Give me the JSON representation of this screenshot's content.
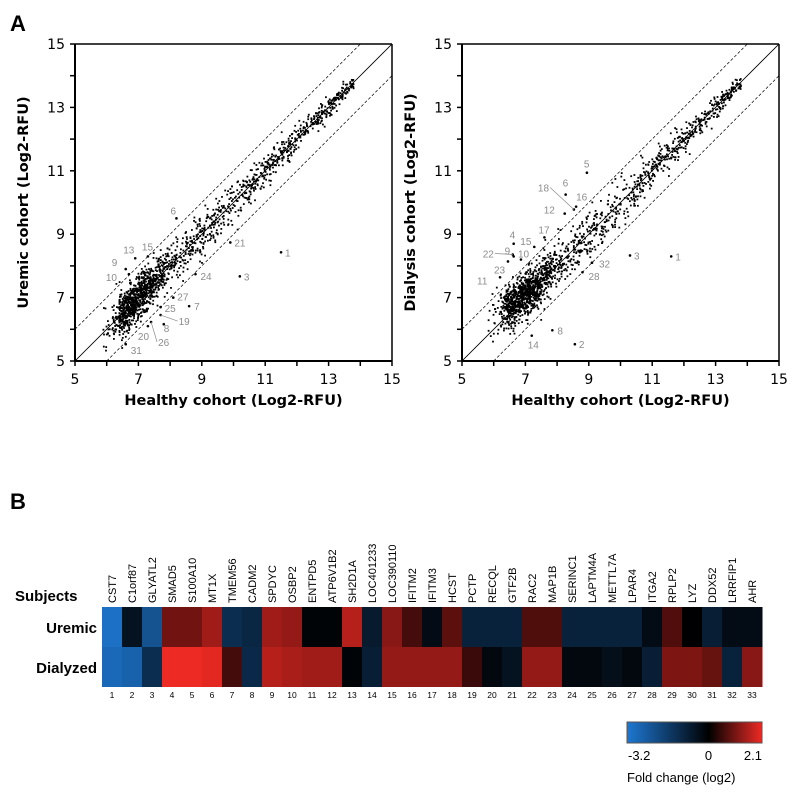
{
  "panels": {
    "a": "A",
    "b": "B"
  },
  "chart_data": [
    {
      "type": "scatter",
      "xlabel": "Healthy cohort (Log2-RFU)",
      "ylabel": "Uremic cohort (Log2-RFU)",
      "xlim": [
        5,
        15
      ],
      "ylim": [
        5,
        15
      ],
      "xticks": [
        "5",
        "7",
        "9",
        "11",
        "13",
        "15"
      ],
      "yticks": [
        "5",
        "7",
        "9",
        "11",
        "13",
        "15"
      ],
      "reference_lines": {
        "identity": "y = x",
        "bounds": "y = x ± 1"
      },
      "cloud": {
        "n": 1600,
        "x_range": [
          6.4,
          13.8
        ],
        "spread": 0.32
      },
      "outliers": [
        {
          "label": "1",
          "x": 11.5,
          "y": 8.43
        },
        {
          "label": "3",
          "x": 10.2,
          "y": 7.67
        },
        {
          "label": "6",
          "x": 8.2,
          "y": 9.5
        },
        {
          "label": "7",
          "x": 8.6,
          "y": 6.73
        },
        {
          "label": "8",
          "x": 7.8,
          "y": 6.16
        },
        {
          "label": "9",
          "x": 6.6,
          "y": 7.9
        },
        {
          "label": "10",
          "x": 6.7,
          "y": 7.74
        },
        {
          "label": "13",
          "x": 6.9,
          "y": 8.24
        },
        {
          "label": "15",
          "x": 7.3,
          "y": 8.3
        },
        {
          "label": "19",
          "x": 7.7,
          "y": 6.45
        },
        {
          "label": "20",
          "x": 7.3,
          "y": 6.1
        },
        {
          "label": "21",
          "x": 9.9,
          "y": 8.74
        },
        {
          "label": "24",
          "x": 8.8,
          "y": 7.74
        },
        {
          "label": "25",
          "x": 7.7,
          "y": 6.7
        },
        {
          "label": "26",
          "x": 7.4,
          "y": 6.23
        },
        {
          "label": "27",
          "x": 8.1,
          "y": 7.0
        },
        {
          "label": "31",
          "x": 6.6,
          "y": 5.53
        }
      ]
    },
    {
      "type": "scatter",
      "xlabel": "Healthy cohort (Log2-RFU)",
      "ylabel": "Dialysis cohort (Log2-RFU)",
      "xlim": [
        5,
        15
      ],
      "ylim": [
        5,
        15
      ],
      "xticks": [
        "5",
        "7",
        "9",
        "11",
        "13",
        "15"
      ],
      "yticks": [
        "5",
        "7",
        "9",
        "11",
        "13",
        "15"
      ],
      "reference_lines": {
        "identity": "y = x",
        "bounds": "y = x ± 1"
      },
      "cloud": {
        "n": 1600,
        "x_range": [
          6.4,
          13.8
        ],
        "spread": 0.36
      },
      "outliers": [
        {
          "label": "1",
          "x": 11.6,
          "y": 8.3
        },
        {
          "label": "2",
          "x": 8.56,
          "y": 5.53
        },
        {
          "label": "3",
          "x": 10.3,
          "y": 8.33
        },
        {
          "label": "4",
          "x": 6.63,
          "y": 8.7
        },
        {
          "label": "5",
          "x": 8.94,
          "y": 10.94
        },
        {
          "label": "6",
          "x": 8.27,
          "y": 10.25
        },
        {
          "label": "8",
          "x": 7.85,
          "y": 5.97
        },
        {
          "label": "9",
          "x": 6.63,
          "y": 8.3
        },
        {
          "label": "10",
          "x": 6.86,
          "y": 8.2
        },
        {
          "label": "11",
          "x": 6.2,
          "y": 7.64
        },
        {
          "label": "12",
          "x": 8.24,
          "y": 9.65
        },
        {
          "label": "14",
          "x": 7.2,
          "y": 5.8
        },
        {
          "label": "15",
          "x": 7.28,
          "y": 8.6
        },
        {
          "label": "16",
          "x": 8.6,
          "y": 9.87
        },
        {
          "label": "17",
          "x": 7.6,
          "y": 8.9
        },
        {
          "label": "18",
          "x": 8.53,
          "y": 9.78
        },
        {
          "label": "22",
          "x": 6.6,
          "y": 8.36
        },
        {
          "label": "23",
          "x": 6.45,
          "y": 8.14
        },
        {
          "label": "28",
          "x": 8.8,
          "y": 7.8
        },
        {
          "label": "32",
          "x": 9.1,
          "y": 8.1
        }
      ]
    },
    {
      "type": "heatmap",
      "corner_label": "Subjects",
      "rows": [
        "Uremic",
        "Dialyzed"
      ],
      "columns": [
        "CST7",
        "C1orf87",
        "GLYATL2",
        "SMAD5",
        "S100A10",
        "MT1X",
        "TMEM56",
        "CADM2",
        "SPDYC",
        "OSBP2",
        "ENTPD5",
        "ATP6V1B2",
        "SH2D1A",
        "LOC401233",
        "LOC390110",
        "IFITM2",
        "IFITM3",
        "HCST",
        "PCTP",
        "RECQL",
        "GTF2B",
        "RAC2",
        "MAP1B",
        "SERINC1",
        "LAPTM4A",
        "METTL7A",
        "LPAR4",
        "ITGA2",
        "RPLP2",
        "LYZ",
        "DDX52",
        "LRRFIP1",
        "AHR"
      ],
      "column_numbers": [
        "1",
        "2",
        "3",
        "4",
        "5",
        "6",
        "7",
        "8",
        "9",
        "10",
        "11",
        "12",
        "13",
        "14",
        "15",
        "16",
        "17",
        "18",
        "19",
        "20",
        "21",
        "22",
        "23",
        "24",
        "25",
        "26",
        "27",
        "28",
        "29",
        "30",
        "31",
        "32",
        "33"
      ],
      "values": [
        [
          -3.0,
          -0.5,
          -2.2,
          1.0,
          1.0,
          1.4,
          -1.2,
          -1.0,
          1.4,
          1.3,
          -0.1,
          -0.1,
          1.6,
          -0.7,
          1.2,
          0.6,
          -0.3,
          0.8,
          -0.9,
          -0.9,
          -0.9,
          0.7,
          0.7,
          -0.9,
          -0.9,
          -0.9,
          -0.9,
          -0.3,
          0.7,
          0.0,
          -0.8,
          -0.3,
          -0.3
        ],
        [
          -2.8,
          -2.6,
          -1.2,
          2.1,
          2.1,
          2.0,
          0.6,
          -1.1,
          1.6,
          1.5,
          1.4,
          1.4,
          -0.1,
          -0.8,
          1.3,
          1.3,
          1.3,
          1.3,
          0.5,
          -0.2,
          -0.5,
          1.3,
          1.3,
          -0.2,
          -0.2,
          -0.4,
          -0.2,
          -0.8,
          1.1,
          1.1,
          0.9,
          -0.9,
          1.2
        ]
      ],
      "colorbar": {
        "min": -3.2,
        "mid": 0,
        "max": 2.1,
        "min_label": "-3.2",
        "mid_label": "0",
        "max_label": "2.1",
        "title": "Fold change (log2)",
        "colors": {
          "low": "#1e78d2",
          "mid": "#000000",
          "high": "#ee2a24"
        }
      }
    }
  ]
}
